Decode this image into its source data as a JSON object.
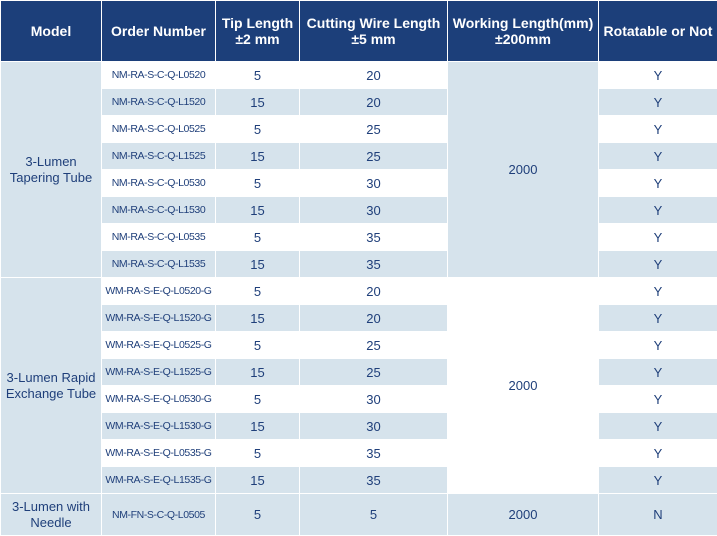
{
  "headers": {
    "model": "Model",
    "order": "Order Number",
    "tip": "Tip Length ±2 mm",
    "cutting": "Cutting Wire Length ±5 mm",
    "working": "Working Length(mm) ±200mm",
    "rotatable": "Rotatable or Not"
  },
  "groups": [
    {
      "model": "3-Lumen Tapering Tube",
      "working": "2000",
      "rows": [
        {
          "order": "NM-RA-S-C-Q-L0520",
          "tip": "5",
          "cut": "20",
          "rot": "Y"
        },
        {
          "order": "NM-RA-S-C-Q-L1520",
          "tip": "15",
          "cut": "20",
          "rot": "Y"
        },
        {
          "order": "NM-RA-S-C-Q-L0525",
          "tip": "5",
          "cut": "25",
          "rot": "Y"
        },
        {
          "order": "NM-RA-S-C-Q-L1525",
          "tip": "15",
          "cut": "25",
          "rot": "Y"
        },
        {
          "order": "NM-RA-S-C-Q-L0530",
          "tip": "5",
          "cut": "30",
          "rot": "Y"
        },
        {
          "order": "NM-RA-S-C-Q-L1530",
          "tip": "15",
          "cut": "30",
          "rot": "Y"
        },
        {
          "order": "NM-RA-S-C-Q-L0535",
          "tip": "5",
          "cut": "35",
          "rot": "Y"
        },
        {
          "order": "NM-RA-S-C-Q-L1535",
          "tip": "15",
          "cut": "35",
          "rot": "Y"
        }
      ]
    },
    {
      "model": "3-Lumen Rapid Exchange Tube",
      "working": "2000",
      "rows": [
        {
          "order": "WM-RA-S-E-Q-L0520-G",
          "tip": "5",
          "cut": "20",
          "rot": "Y"
        },
        {
          "order": "WM-RA-S-E-Q-L1520-G",
          "tip": "15",
          "cut": "20",
          "rot": "Y"
        },
        {
          "order": "WM-RA-S-E-Q-L0525-G",
          "tip": "5",
          "cut": "25",
          "rot": "Y"
        },
        {
          "order": "WM-RA-S-E-Q-L1525-G",
          "tip": "15",
          "cut": "25",
          "rot": "Y"
        },
        {
          "order": "WM-RA-S-E-Q-L0530-G",
          "tip": "5",
          "cut": "30",
          "rot": "Y"
        },
        {
          "order": "WM-RA-S-E-Q-L1530-G",
          "tip": "15",
          "cut": "30",
          "rot": "Y"
        },
        {
          "order": "WM-RA-S-E-Q-L0535-G",
          "tip": "5",
          "cut": "35",
          "rot": "Y"
        },
        {
          "order": "WM-RA-S-E-Q-L1535-G",
          "tip": "15",
          "cut": "35",
          "rot": "Y"
        }
      ]
    },
    {
      "model": "3-Lumen with Needle",
      "working": "2000",
      "rows": [
        {
          "order": "NM-FN-S-C-Q-L0505",
          "tip": "5",
          "cut": "5",
          "rot": "N"
        }
      ]
    }
  ]
}
